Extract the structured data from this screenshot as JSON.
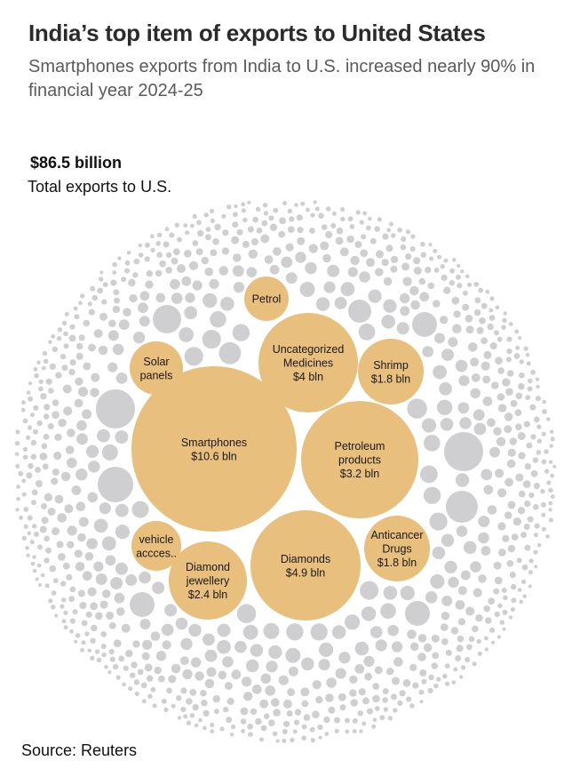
{
  "title": "India’s top item of exports to United States",
  "subtitle": "Smartphones exports from India to U.S. increased nearly 90% in financial year 2024-25",
  "total": {
    "value": "$86.5 billion",
    "label": "Total exports to U.S."
  },
  "source": "Source: Reuters",
  "colors": {
    "highlight": "#e8bf7d",
    "other": "#cfcfd1",
    "label": "#1a1a1a"
  },
  "chart_data": {
    "type": "bubble",
    "unit": "$ bln",
    "total": 86.5,
    "items": [
      {
        "name": "Smartphones",
        "value": 10.6,
        "lines": [
          "Smartphones",
          "$10.6 bln"
        ]
      },
      {
        "name": "Diamonds",
        "value": 4.9,
        "lines": [
          "Diamonds",
          "$4.9 bln"
        ]
      },
      {
        "name": "Uncategorized Medicines",
        "value": 4.0,
        "lines": [
          "Uncategorized",
          "Medicines",
          "$4 bln"
        ]
      },
      {
        "name": "Petroleum products",
        "value": 3.2,
        "lines": [
          "Petroleum",
          "products",
          "$3.2 bln"
        ]
      },
      {
        "name": "Diamond jewellery",
        "value": 2.4,
        "lines": [
          "Diamond",
          "jewellery",
          "$2.4 bln"
        ]
      },
      {
        "name": "Shrimp",
        "value": 1.8,
        "lines": [
          "Shrimp",
          "$1.8 bln"
        ]
      },
      {
        "name": "Anticancer Drugs",
        "value": 1.8,
        "lines": [
          "Anticancer",
          "Drugs",
          "$1.8 bln"
        ]
      },
      {
        "name": "Solar panels",
        "value": null,
        "lines": [
          "Solar",
          "panels"
        ]
      },
      {
        "name": "Petrol",
        "value": null,
        "lines": [
          "Petrol"
        ]
      },
      {
        "name": "vehicle accces..",
        "value": null,
        "lines": [
          "vehicle",
          "accces.."
        ]
      }
    ]
  }
}
